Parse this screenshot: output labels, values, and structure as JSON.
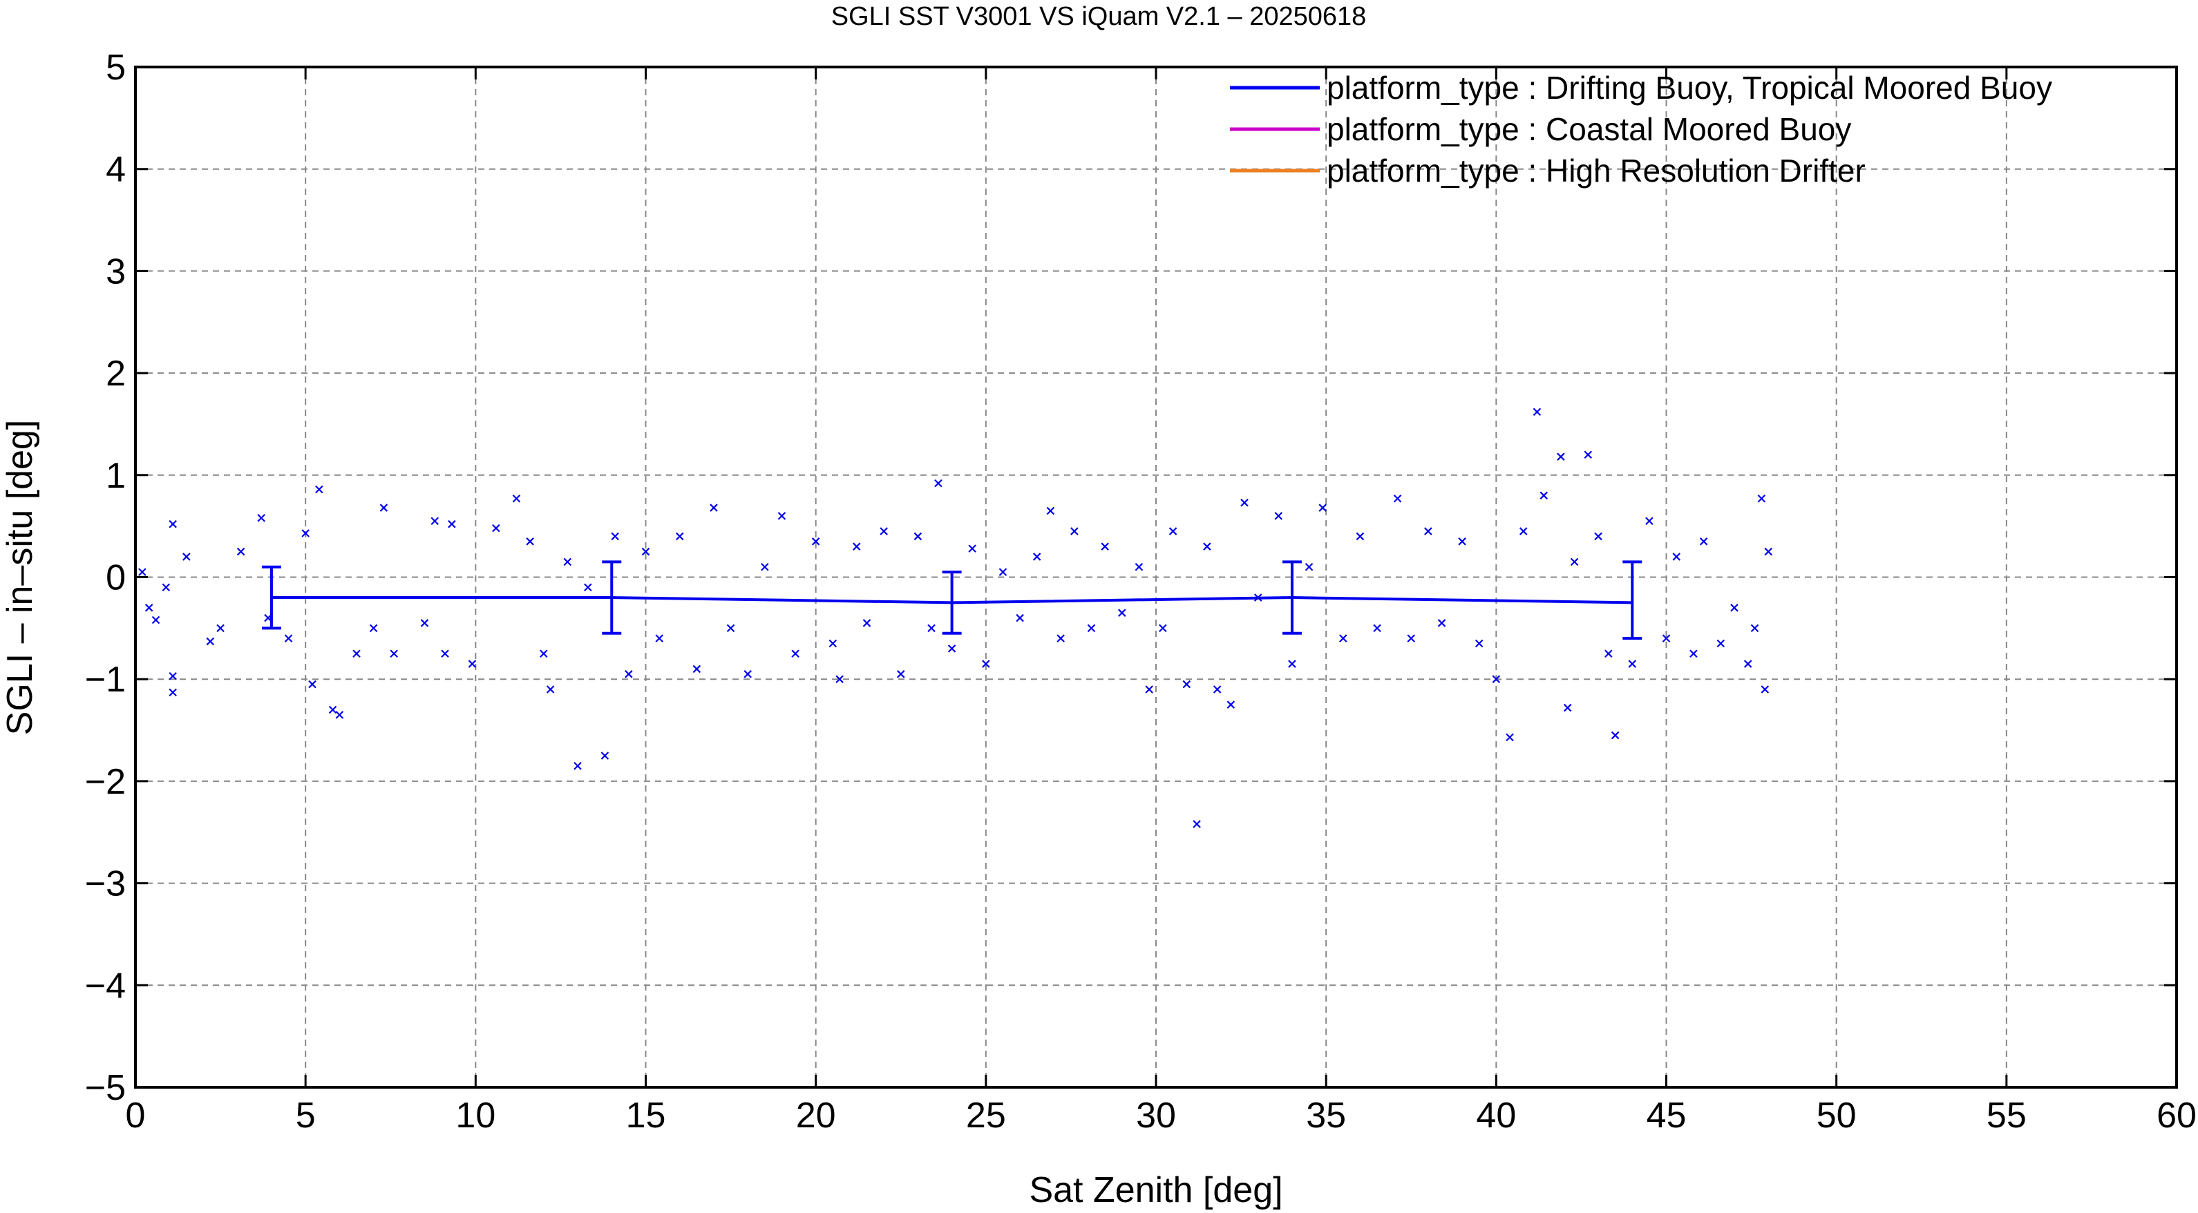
{
  "chart_data": {
    "type": "scatter",
    "title": "SGLI SST V3001 VS iQuam V2.1  – 20250618",
    "xlabel": "Sat Zenith [deg]",
    "ylabel": "SGLI – in–situ [deg]",
    "xlim": [
      0,
      60
    ],
    "ylim": [
      -5,
      5
    ],
    "x_ticks": [
      0,
      5,
      10,
      15,
      20,
      25,
      30,
      35,
      40,
      45,
      50,
      55,
      60
    ],
    "x_tick_labels": [
      "0",
      "5",
      "10",
      "15",
      "20",
      "25",
      "30",
      "35",
      "40",
      "45",
      "50",
      "55",
      "60"
    ],
    "y_ticks": [
      5,
      4,
      3,
      2,
      1,
      0,
      -1,
      -2,
      -3,
      -4,
      -5
    ],
    "y_tick_labels": [
      "5",
      "4",
      "3",
      "2",
      "1",
      "0",
      "−1",
      "−2",
      "−3",
      "−4",
      "−5"
    ],
    "grid": true,
    "legend_position": "top-right",
    "legend": [
      {
        "label": "platform_type : Drifting Buoy, Tropical Moored Buoy",
        "color": "#0000ee"
      },
      {
        "label": "platform_type : Coastal Moored Buoy",
        "color": "#cc00cc"
      },
      {
        "label": "platform_type : High Resolution Drifter",
        "color": "#ee7f22"
      }
    ],
    "series": [
      {
        "kind": "mean_errorbar",
        "color": "#0000ee",
        "points": [
          {
            "x": 4,
            "y": -0.2,
            "low": -0.5,
            "high": 0.1
          },
          {
            "x": 14,
            "y": -0.2,
            "low": -0.55,
            "high": 0.15
          },
          {
            "x": 24,
            "y": -0.25,
            "low": -0.55,
            "high": 0.05
          },
          {
            "x": 34,
            "y": -0.2,
            "low": -0.55,
            "high": 0.15
          },
          {
            "x": 44,
            "y": -0.25,
            "low": -0.6,
            "high": 0.15
          }
        ]
      },
      {
        "kind": "scatter",
        "color": "#0000ee",
        "points": [
          [
            0.2,
            0.05
          ],
          [
            0.4,
            -0.3
          ],
          [
            0.6,
            -0.42
          ],
          [
            0.9,
            -0.1
          ],
          [
            1.1,
            0.52
          ],
          [
            1.1,
            -0.97
          ],
          [
            1.1,
            -1.13
          ],
          [
            1.5,
            0.2
          ],
          [
            2.2,
            -0.63
          ],
          [
            2.5,
            -0.5
          ],
          [
            3.1,
            0.25
          ],
          [
            3.7,
            0.58
          ],
          [
            3.9,
            -0.4
          ],
          [
            4.5,
            -0.6
          ],
          [
            5.0,
            0.43
          ],
          [
            5.2,
            -1.05
          ],
          [
            5.4,
            0.86
          ],
          [
            5.8,
            -1.3
          ],
          [
            6.0,
            -1.35
          ],
          [
            6.5,
            -0.75
          ],
          [
            7.0,
            -0.5
          ],
          [
            7.3,
            0.68
          ],
          [
            7.6,
            -0.75
          ],
          [
            8.5,
            -0.45
          ],
          [
            8.8,
            0.55
          ],
          [
            9.1,
            -0.75
          ],
          [
            9.3,
            0.52
          ],
          [
            9.9,
            -0.85
          ],
          [
            10.6,
            0.48
          ],
          [
            11.2,
            0.77
          ],
          [
            11.6,
            0.35
          ],
          [
            12.0,
            -0.75
          ],
          [
            12.2,
            -1.1
          ],
          [
            12.7,
            0.15
          ],
          [
            13.0,
            -1.85
          ],
          [
            13.3,
            -0.1
          ],
          [
            13.8,
            -1.75
          ],
          [
            14.1,
            0.4
          ],
          [
            14.5,
            -0.95
          ],
          [
            15.0,
            0.25
          ],
          [
            15.4,
            -0.6
          ],
          [
            16.0,
            0.4
          ],
          [
            16.5,
            -0.9
          ],
          [
            17.0,
            0.68
          ],
          [
            17.5,
            -0.5
          ],
          [
            18.0,
            -0.95
          ],
          [
            18.5,
            0.1
          ],
          [
            19.0,
            0.6
          ],
          [
            19.4,
            -0.75
          ],
          [
            20.0,
            0.35
          ],
          [
            20.5,
            -0.65
          ],
          [
            20.7,
            -1.0
          ],
          [
            21.2,
            0.3
          ],
          [
            21.5,
            -0.45
          ],
          [
            22.0,
            0.45
          ],
          [
            22.5,
            -0.95
          ],
          [
            23.0,
            0.4
          ],
          [
            23.4,
            -0.5
          ],
          [
            23.6,
            0.92
          ],
          [
            24.0,
            -0.7
          ],
          [
            24.6,
            0.28
          ],
          [
            25.0,
            -0.85
          ],
          [
            25.5,
            0.05
          ],
          [
            26.0,
            -0.4
          ],
          [
            26.5,
            0.2
          ],
          [
            26.9,
            0.65
          ],
          [
            27.2,
            -0.6
          ],
          [
            27.6,
            0.45
          ],
          [
            28.1,
            -0.5
          ],
          [
            28.5,
            0.3
          ],
          [
            29.0,
            -0.35
          ],
          [
            29.5,
            0.1
          ],
          [
            29.8,
            -1.1
          ],
          [
            30.2,
            -0.5
          ],
          [
            30.5,
            0.45
          ],
          [
            30.9,
            -1.05
          ],
          [
            31.2,
            -2.42
          ],
          [
            31.5,
            0.3
          ],
          [
            31.8,
            -1.1
          ],
          [
            32.2,
            -1.25
          ],
          [
            32.6,
            0.73
          ],
          [
            33.0,
            -0.2
          ],
          [
            33.6,
            0.6
          ],
          [
            34.0,
            -0.85
          ],
          [
            34.5,
            0.1
          ],
          [
            34.9,
            0.68
          ],
          [
            35.5,
            -0.6
          ],
          [
            36.0,
            0.4
          ],
          [
            36.5,
            -0.5
          ],
          [
            37.1,
            0.77
          ],
          [
            37.5,
            -0.6
          ],
          [
            38.0,
            0.45
          ],
          [
            38.4,
            -0.45
          ],
          [
            39.0,
            0.35
          ],
          [
            39.5,
            -0.65
          ],
          [
            40.0,
            -1.0
          ],
          [
            40.4,
            -1.57
          ],
          [
            40.8,
            0.45
          ],
          [
            41.2,
            1.62
          ],
          [
            41.4,
            0.8
          ],
          [
            41.9,
            1.18
          ],
          [
            42.1,
            -1.28
          ],
          [
            42.3,
            0.15
          ],
          [
            42.7,
            1.2
          ],
          [
            43.0,
            0.4
          ],
          [
            43.3,
            -0.75
          ],
          [
            43.5,
            -1.55
          ],
          [
            44.0,
            -0.85
          ],
          [
            44.5,
            0.55
          ],
          [
            45.0,
            -0.6
          ],
          [
            45.3,
            0.2
          ],
          [
            45.8,
            -0.75
          ],
          [
            46.1,
            0.35
          ],
          [
            46.6,
            -0.65
          ],
          [
            47.0,
            -0.3
          ],
          [
            47.4,
            -0.85
          ],
          [
            47.6,
            -0.5
          ],
          [
            47.8,
            0.77
          ],
          [
            47.9,
            -1.1
          ],
          [
            48.0,
            0.25
          ]
        ]
      }
    ]
  }
}
